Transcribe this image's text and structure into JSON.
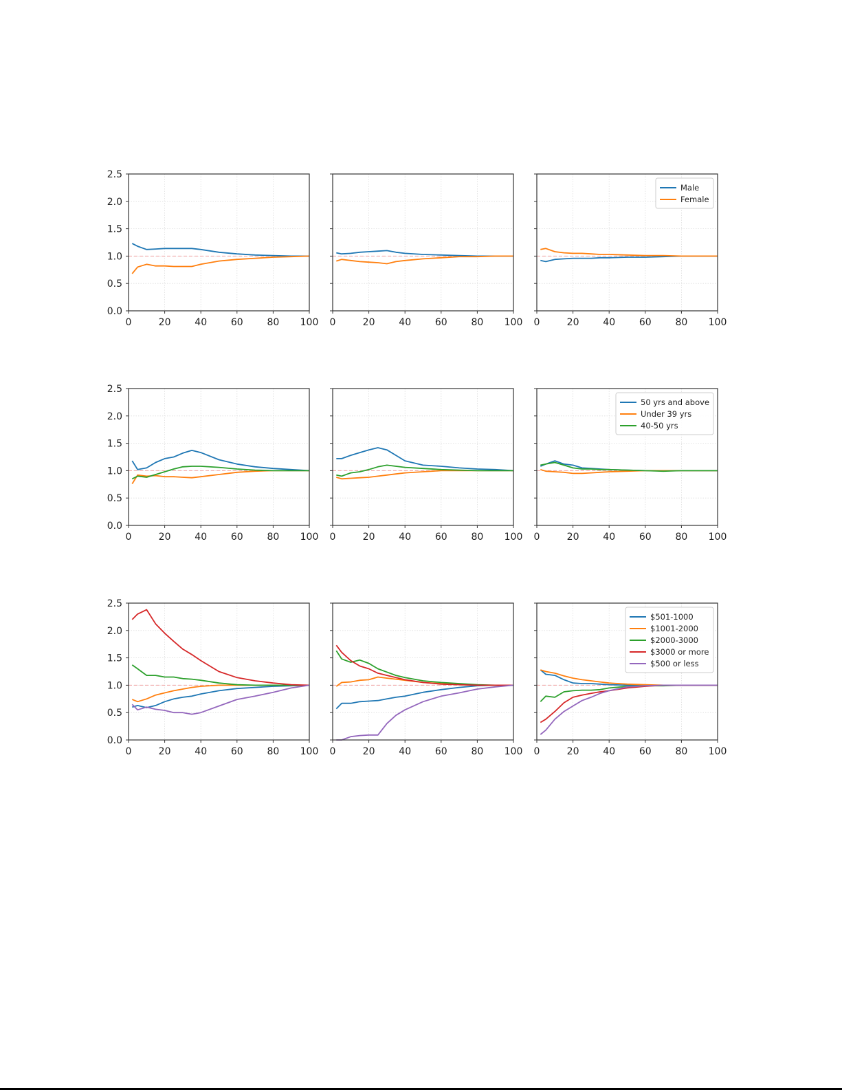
{
  "chart_data": {
    "type": "line",
    "layout": "3x3 grid",
    "x": [
      2,
      5,
      10,
      15,
      20,
      25,
      30,
      35,
      40,
      50,
      60,
      70,
      80,
      90,
      100
    ],
    "xlim": [
      0,
      100
    ],
    "ylim": [
      0,
      2.5
    ],
    "xticks": [
      0,
      20,
      40,
      60,
      80,
      100
    ],
    "yticks": [
      0.0,
      0.5,
      1.0,
      1.5,
      2.0,
      2.5
    ],
    "ytick_labels": [
      "0.0",
      "0.5",
      "1.0",
      "1.5",
      "2.0",
      "2.5"
    ],
    "reference_line": 1.0,
    "grid": true,
    "legend_placement": "top-right of right column",
    "colors": [
      "#1f77b4",
      "#ff7f0e",
      "#2ca02c",
      "#d62728",
      "#9467bd"
    ],
    "rows": [
      {
        "legend": [
          "Male",
          "Female"
        ],
        "panels": [
          {
            "series": [
              {
                "name": "Male",
                "values": [
                  1.23,
                  1.18,
                  1.12,
                  1.13,
                  1.14,
                  1.14,
                  1.14,
                  1.14,
                  1.12,
                  1.07,
                  1.04,
                  1.02,
                  1.01,
                  1.0,
                  1.0
                ]
              },
              {
                "name": "Female",
                "values": [
                  0.68,
                  0.8,
                  0.85,
                  0.82,
                  0.82,
                  0.81,
                  0.81,
                  0.81,
                  0.85,
                  0.91,
                  0.94,
                  0.96,
                  0.98,
                  0.99,
                  1.0
                ]
              }
            ]
          },
          {
            "series": [
              {
                "name": "Male",
                "values": [
                  1.06,
                  1.04,
                  1.05,
                  1.07,
                  1.08,
                  1.09,
                  1.1,
                  1.07,
                  1.05,
                  1.03,
                  1.02,
                  1.01,
                  1.0,
                  1.0,
                  1.0
                ]
              },
              {
                "name": "Female",
                "values": [
                  0.91,
                  0.94,
                  0.92,
                  0.9,
                  0.89,
                  0.88,
                  0.86,
                  0.9,
                  0.92,
                  0.95,
                  0.97,
                  0.99,
                  0.99,
                  1.0,
                  1.0
                ]
              }
            ]
          },
          {
            "series": [
              {
                "name": "Male",
                "values": [
                  0.92,
                  0.9,
                  0.94,
                  0.95,
                  0.96,
                  0.96,
                  0.96,
                  0.97,
                  0.97,
                  0.98,
                  0.98,
                  0.99,
                  1.0,
                  1.0,
                  1.0
                ]
              },
              {
                "name": "Female",
                "values": [
                  1.12,
                  1.14,
                  1.08,
                  1.06,
                  1.05,
                  1.05,
                  1.04,
                  1.03,
                  1.03,
                  1.02,
                  1.01,
                  1.01,
                  1.0,
                  1.0,
                  1.0
                ]
              }
            ]
          }
        ]
      },
      {
        "legend": [
          "50 yrs and above",
          "Under 39 yrs",
          "40-50 yrs"
        ],
        "panels": [
          {
            "series": [
              {
                "name": "50 yrs and above",
                "values": [
                  1.18,
                  1.02,
                  1.05,
                  1.15,
                  1.22,
                  1.25,
                  1.32,
                  1.37,
                  1.33,
                  1.2,
                  1.12,
                  1.07,
                  1.04,
                  1.02,
                  1.0
                ]
              },
              {
                "name": "Under 39 yrs",
                "values": [
                  0.76,
                  0.92,
                  0.9,
                  0.91,
                  0.89,
                  0.89,
                  0.88,
                  0.87,
                  0.89,
                  0.93,
                  0.97,
                  0.99,
                  1.0,
                  1.0,
                  1.0
                ]
              },
              {
                "name": "40-50 yrs",
                "values": [
                  0.85,
                  0.9,
                  0.88,
                  0.93,
                  0.98,
                  1.03,
                  1.07,
                  1.08,
                  1.08,
                  1.06,
                  1.03,
                  1.01,
                  1.0,
                  1.0,
                  1.0
                ]
              }
            ]
          },
          {
            "series": [
              {
                "name": "50 yrs and above",
                "values": [
                  1.22,
                  1.22,
                  1.28,
                  1.33,
                  1.38,
                  1.42,
                  1.38,
                  1.28,
                  1.18,
                  1.1,
                  1.08,
                  1.05,
                  1.03,
                  1.02,
                  1.0
                ]
              },
              {
                "name": "Under 39 yrs",
                "values": [
                  0.88,
                  0.85,
                  0.86,
                  0.87,
                  0.88,
                  0.9,
                  0.92,
                  0.94,
                  0.96,
                  0.98,
                  1.0,
                  1.0,
                  1.0,
                  1.0,
                  1.0
                ]
              },
              {
                "name": "40-50 yrs",
                "values": [
                  0.92,
                  0.9,
                  0.96,
                  0.98,
                  1.02,
                  1.07,
                  1.1,
                  1.08,
                  1.06,
                  1.04,
                  1.02,
                  1.01,
                  1.0,
                  1.0,
                  1.0
                ]
              }
            ]
          },
          {
            "series": [
              {
                "name": "50 yrs and above",
                "values": [
                  1.08,
                  1.12,
                  1.18,
                  1.12,
                  1.1,
                  1.05,
                  1.04,
                  1.03,
                  1.02,
                  1.01,
                  1.0,
                  1.0,
                  1.0,
                  1.0,
                  1.0
                ]
              },
              {
                "name": "Under 39 yrs",
                "values": [
                  1.02,
                  0.99,
                  0.98,
                  0.97,
                  0.95,
                  0.95,
                  0.96,
                  0.97,
                  0.98,
                  0.99,
                  1.0,
                  1.0,
                  1.0,
                  1.0,
                  1.0
                ]
              },
              {
                "name": "40-50 yrs",
                "values": [
                  1.1,
                  1.12,
                  1.15,
                  1.1,
                  1.05,
                  1.03,
                  1.03,
                  1.02,
                  1.02,
                  1.01,
                  1.0,
                  0.99,
                  1.0,
                  1.0,
                  1.0
                ]
              }
            ]
          }
        ]
      },
      {
        "legend": [
          "$501-1000",
          "$1001-2000",
          "$2000-3000",
          "$3000 or more",
          "$500 or less"
        ],
        "panels": [
          {
            "series": [
              {
                "name": "$501-1000",
                "values": [
                  0.6,
                  0.63,
                  0.59,
                  0.63,
                  0.7,
                  0.75,
                  0.78,
                  0.8,
                  0.84,
                  0.9,
                  0.94,
                  0.96,
                  0.98,
                  0.99,
                  1.0
                ]
              },
              {
                "name": "$1001-2000",
                "values": [
                  0.74,
                  0.7,
                  0.75,
                  0.82,
                  0.86,
                  0.9,
                  0.93,
                  0.96,
                  0.98,
                  1.0,
                  1.0,
                  1.0,
                  1.0,
                  1.0,
                  1.0
                ]
              },
              {
                "name": "$2000-3000",
                "values": [
                  1.37,
                  1.3,
                  1.18,
                  1.18,
                  1.15,
                  1.15,
                  1.12,
                  1.11,
                  1.09,
                  1.04,
                  1.01,
                  1.0,
                  1.0,
                  1.0,
                  1.0
                ]
              },
              {
                "name": "$3000 or more",
                "values": [
                  2.2,
                  2.3,
                  2.38,
                  2.12,
                  1.95,
                  1.8,
                  1.66,
                  1.56,
                  1.45,
                  1.25,
                  1.14,
                  1.08,
                  1.04,
                  1.01,
                  1.0
                ]
              },
              {
                "name": "$500 or less",
                "values": [
                  0.65,
                  0.55,
                  0.6,
                  0.56,
                  0.54,
                  0.5,
                  0.5,
                  0.47,
                  0.5,
                  0.62,
                  0.74,
                  0.8,
                  0.87,
                  0.95,
                  1.0
                ]
              }
            ]
          },
          {
            "series": [
              {
                "name": "$501-1000",
                "values": [
                  0.57,
                  0.67,
                  0.67,
                  0.7,
                  0.71,
                  0.72,
                  0.75,
                  0.78,
                  0.8,
                  0.87,
                  0.92,
                  0.96,
                  0.99,
                  1.0,
                  1.0
                ]
              },
              {
                "name": "$1001-2000",
                "values": [
                  0.98,
                  1.05,
                  1.06,
                  1.09,
                  1.1,
                  1.15,
                  1.13,
                  1.11,
                  1.09,
                  1.05,
                  1.03,
                  1.01,
                  1.0,
                  1.0,
                  1.0
                ]
              },
              {
                "name": "$2000-3000",
                "values": [
                  1.63,
                  1.48,
                  1.42,
                  1.46,
                  1.4,
                  1.3,
                  1.24,
                  1.18,
                  1.14,
                  1.08,
                  1.05,
                  1.03,
                  1.01,
                  1.0,
                  1.0
                ]
              },
              {
                "name": "$3000 or more",
                "values": [
                  1.73,
                  1.6,
                  1.45,
                  1.35,
                  1.3,
                  1.22,
                  1.18,
                  1.14,
                  1.1,
                  1.05,
                  1.02,
                  1.01,
                  1.0,
                  1.0,
                  1.0
                ]
              },
              {
                "name": "$500 or less",
                "values": [
                  0.0,
                  0.0,
                  0.06,
                  0.08,
                  0.09,
                  0.09,
                  0.3,
                  0.45,
                  0.55,
                  0.7,
                  0.8,
                  0.86,
                  0.93,
                  0.97,
                  1.0
                ]
              }
            ]
          },
          {
            "series": [
              {
                "name": "$501-1000",
                "values": [
                  1.28,
                  1.2,
                  1.18,
                  1.1,
                  1.04,
                  1.03,
                  1.03,
                  1.02,
                  1.01,
                  1.0,
                  1.0,
                  1.0,
                  1.0,
                  1.0,
                  1.0
                ]
              },
              {
                "name": "$1001-2000",
                "values": [
                  1.28,
                  1.25,
                  1.22,
                  1.17,
                  1.13,
                  1.1,
                  1.08,
                  1.06,
                  1.04,
                  1.02,
                  1.01,
                  1.0,
                  1.0,
                  1.0,
                  1.0
                ]
              },
              {
                "name": "$2000-3000",
                "values": [
                  0.7,
                  0.8,
                  0.78,
                  0.88,
                  0.9,
                  0.91,
                  0.91,
                  0.92,
                  0.95,
                  0.98,
                  0.99,
                  0.99,
                  1.0,
                  1.0,
                  1.0
                ]
              },
              {
                "name": "$3000 or more",
                "values": [
                  0.32,
                  0.38,
                  0.52,
                  0.68,
                  0.78,
                  0.82,
                  0.85,
                  0.88,
                  0.9,
                  0.95,
                  0.98,
                  1.0,
                  1.0,
                  1.0,
                  1.0
                ]
              },
              {
                "name": "$500 or less",
                "values": [
                  0.1,
                  0.18,
                  0.38,
                  0.52,
                  0.62,
                  0.72,
                  0.78,
                  0.85,
                  0.9,
                  0.97,
                  0.99,
                  1.0,
                  1.0,
                  1.0,
                  1.0
                ]
              }
            ]
          }
        ]
      }
    ]
  }
}
